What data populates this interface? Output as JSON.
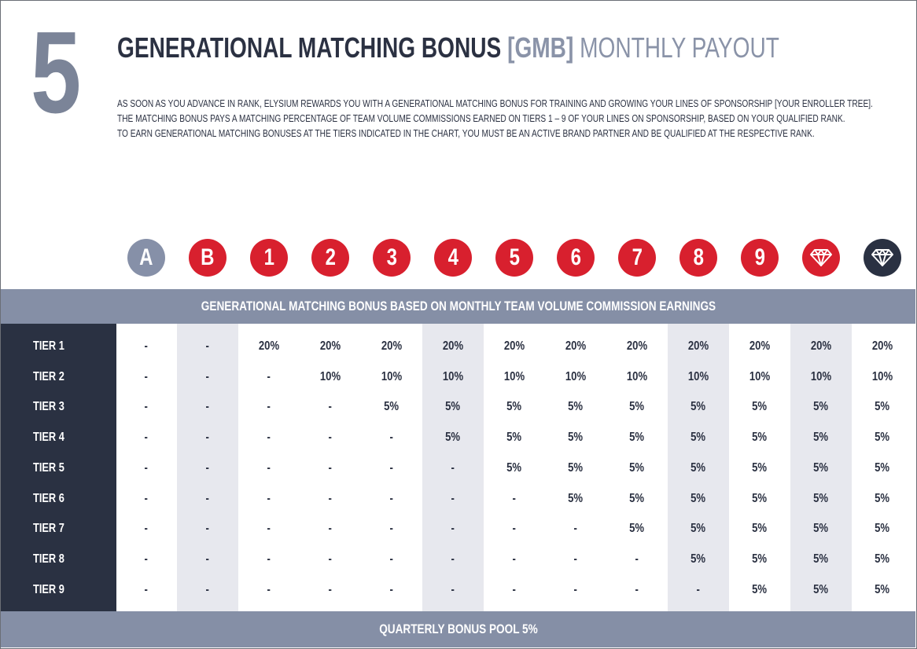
{
  "page": {
    "number": "5",
    "title_main": "GENERATIONAL MATCHING BONUS",
    "title_code": "[GMB]",
    "title_sub": "MONTHLY PAYOUT",
    "intro_lines": [
      "AS SOON AS YOU ADVANCE IN RANK, ELYSIUM REWARDS YOU WITH A GENERATIONAL MATCHING BONUS FOR TRAINING AND GROWING YOUR LINES OF SPONSORSHIP [YOUR ENROLLER TREE].",
      "THE MATCHING BONUS PAYS A MATCHING PERCENTAGE OF TEAM VOLUME COMMISSIONS EARNED ON TIERS 1 – 9 OF YOUR LINES ON SPONSORSHIP, BASED ON YOUR QUALIFIED RANK.",
      "TO EARN GENERATIONAL MATCHING BONUSES AT THE TIERS INDICATED IN THE CHART, YOU MUST BE AN ACTIVE BRAND PARTNER AND BE QUALIFIED AT THE RESPECTIVE RANK."
    ]
  },
  "ranks": [
    {
      "label": "A",
      "icon": "",
      "color": "#8690a8"
    },
    {
      "label": "B",
      "icon": "",
      "color": "#d8202e"
    },
    {
      "label": "1",
      "icon": "",
      "color": "#d8202e"
    },
    {
      "label": "2",
      "icon": "",
      "color": "#d8202e"
    },
    {
      "label": "3",
      "icon": "",
      "color": "#d8202e"
    },
    {
      "label": "4",
      "icon": "",
      "color": "#d8202e"
    },
    {
      "label": "5",
      "icon": "",
      "color": "#d8202e"
    },
    {
      "label": "6",
      "icon": "",
      "color": "#d8202e"
    },
    {
      "label": "7",
      "icon": "",
      "color": "#d8202e"
    },
    {
      "label": "8",
      "icon": "",
      "color": "#d8202e"
    },
    {
      "label": "9",
      "icon": "",
      "color": "#d8202e"
    },
    {
      "label": "",
      "icon": "diamond-icon",
      "color": "#d8202e"
    },
    {
      "label": "",
      "icon": "diamond-icon",
      "color": "#2a3142"
    }
  ],
  "table": {
    "header": "GENERATIONAL MATCHING BONUS BASED ON MONTHLY TEAM VOLUME COMMISSION EARNINGS",
    "footer": "QUARTERLY BONUS POOL 5%",
    "rows": [
      {
        "tier": "TIER 1",
        "values": [
          "-",
          "-",
          "20%",
          "20%",
          "20%",
          "20%",
          "20%",
          "20%",
          "20%",
          "20%",
          "20%",
          "20%",
          "20%"
        ]
      },
      {
        "tier": "TIER 2",
        "values": [
          "-",
          "-",
          "-",
          "10%",
          "10%",
          "10%",
          "10%",
          "10%",
          "10%",
          "10%",
          "10%",
          "10%",
          "10%"
        ]
      },
      {
        "tier": "TIER 3",
        "values": [
          "-",
          "-",
          "-",
          "-",
          "5%",
          "5%",
          "5%",
          "5%",
          "5%",
          "5%",
          "5%",
          "5%",
          "5%"
        ]
      },
      {
        "tier": "TIER 4",
        "values": [
          "-",
          "-",
          "-",
          "-",
          "-",
          "5%",
          "5%",
          "5%",
          "5%",
          "5%",
          "5%",
          "5%",
          "5%"
        ]
      },
      {
        "tier": "TIER 5",
        "values": [
          "-",
          "-",
          "-",
          "-",
          "-",
          "-",
          "5%",
          "5%",
          "5%",
          "5%",
          "5%",
          "5%",
          "5%"
        ]
      },
      {
        "tier": "TIER 6",
        "values": [
          "-",
          "-",
          "-",
          "-",
          "-",
          "-",
          "-",
          "5%",
          "5%",
          "5%",
          "5%",
          "5%",
          "5%"
        ]
      },
      {
        "tier": "TIER 7",
        "values": [
          "-",
          "-",
          "-",
          "-",
          "-",
          "-",
          "-",
          "-",
          "5%",
          "5%",
          "5%",
          "5%",
          "5%"
        ]
      },
      {
        "tier": "TIER 8",
        "values": [
          "-",
          "-",
          "-",
          "-",
          "-",
          "-",
          "-",
          "-",
          "-",
          "5%",
          "5%",
          "5%",
          "5%"
        ]
      },
      {
        "tier": "TIER 9",
        "values": [
          "-",
          "-",
          "-",
          "-",
          "-",
          "-",
          "-",
          "-",
          "-",
          "-",
          "5%",
          "5%",
          "5%"
        ]
      }
    ]
  }
}
